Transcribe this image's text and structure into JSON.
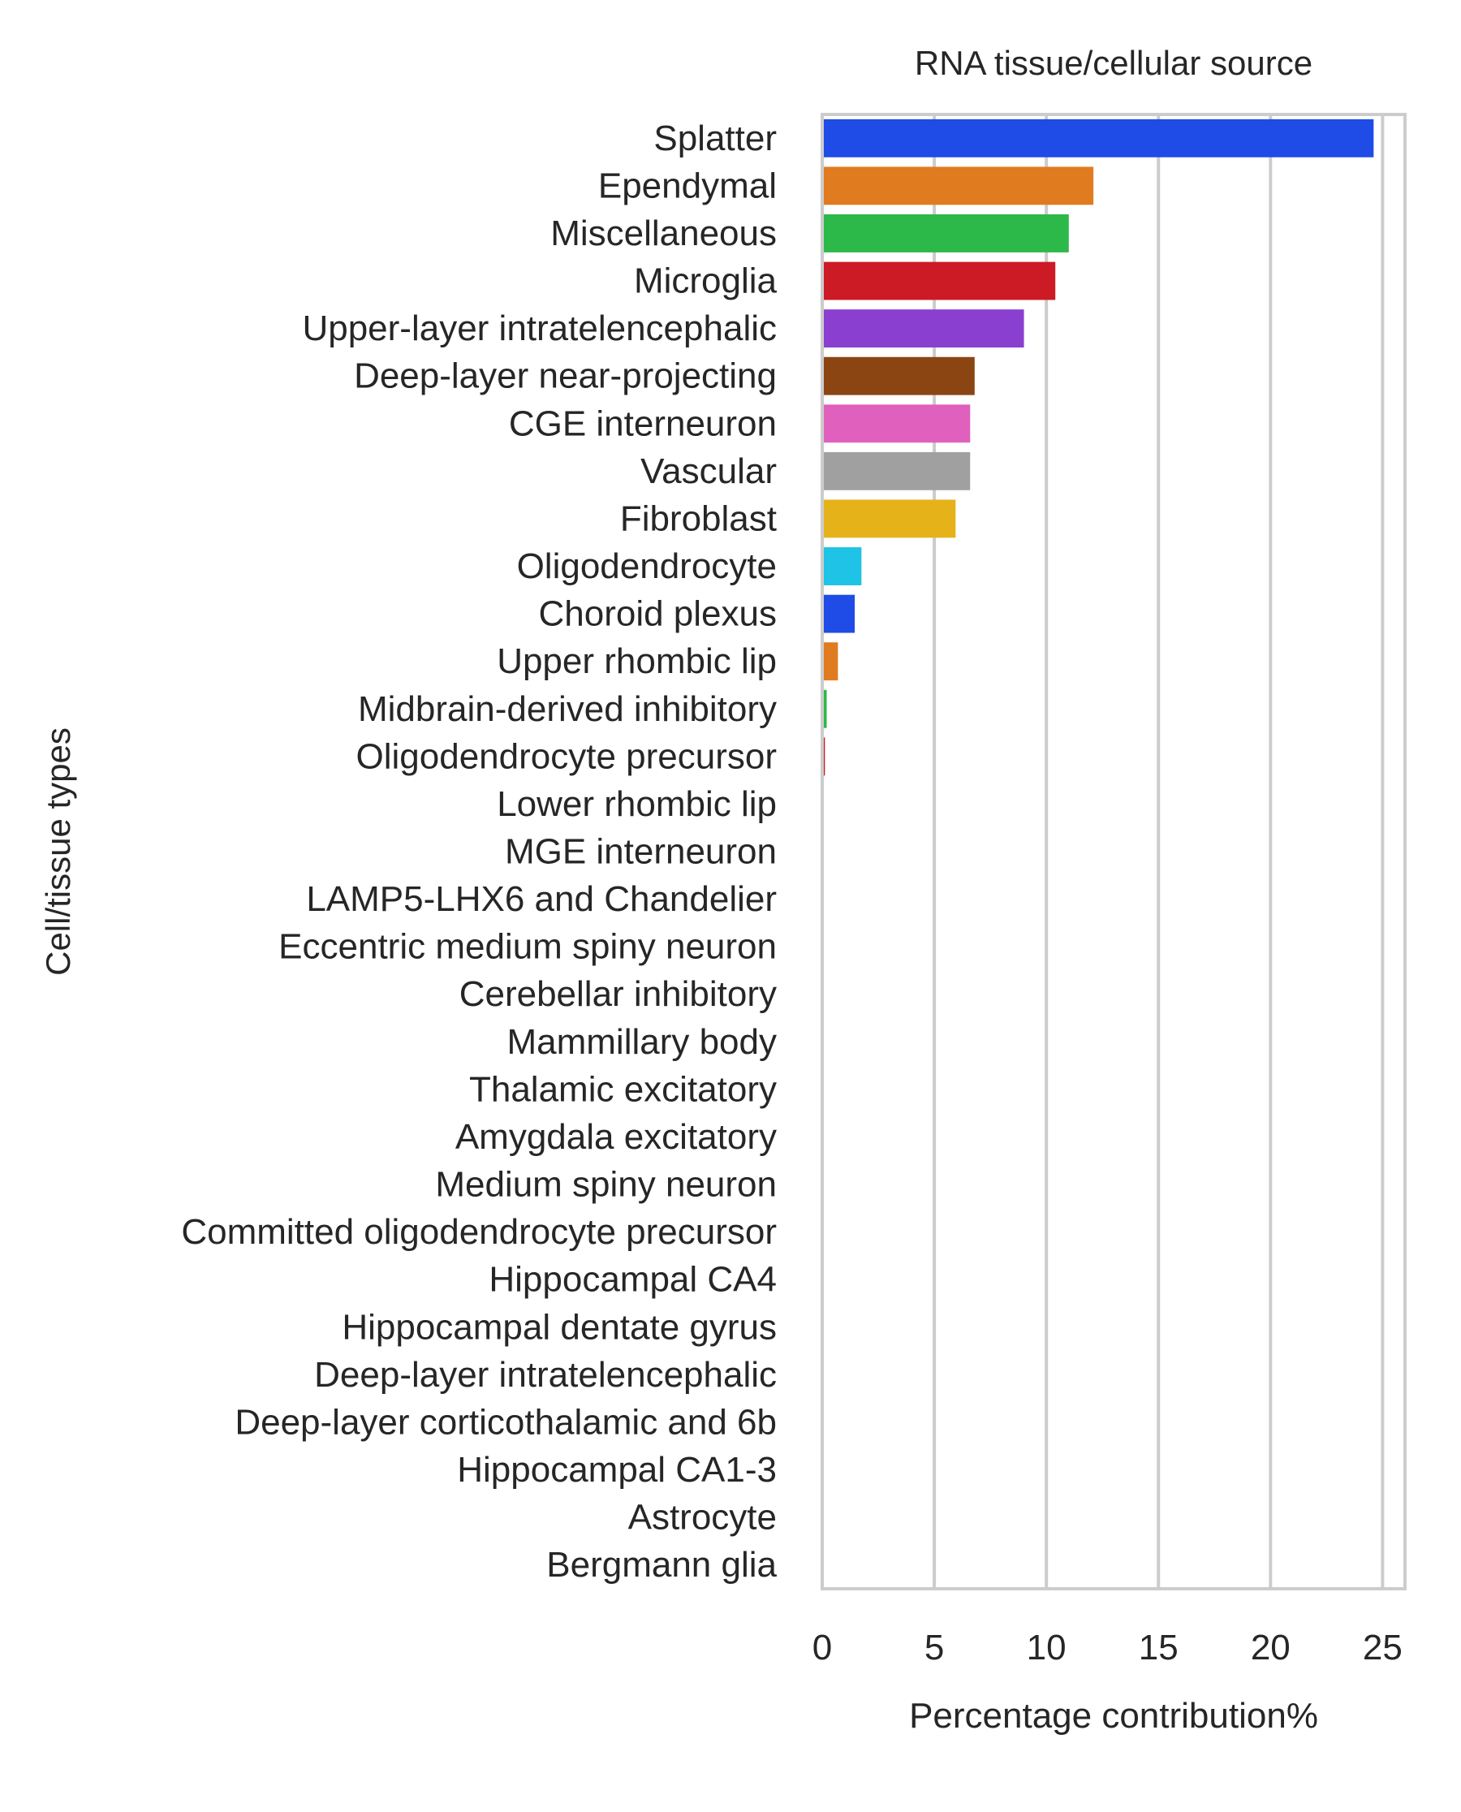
{
  "chart_data": {
    "type": "bar",
    "orientation": "horizontal",
    "title": "RNA tissue/cellular source",
    "xlabel": "Percentage contribution%",
    "ylabel": "Cell/tissue types",
    "xlim": [
      0,
      26
    ],
    "xticks": [
      0,
      5,
      10,
      15,
      20,
      25
    ],
    "grid": true,
    "categories": [
      "Splatter",
      "Ependymal",
      "Miscellaneous",
      "Microglia",
      "Upper-layer intratelencephalic",
      "Deep-layer near-projecting",
      "CGE interneuron",
      "Vascular",
      "Fibroblast",
      "Oligodendrocyte",
      "Choroid plexus",
      "Upper rhombic lip",
      "Midbrain-derived inhibitory",
      "Oligodendrocyte precursor",
      "Lower rhombic lip",
      "MGE interneuron",
      "LAMP5-LHX6 and Chandelier",
      "Eccentric medium spiny neuron",
      "Cerebellar inhibitory",
      "Mammillary body",
      "Thalamic excitatory",
      "Amygdala excitatory",
      "Medium spiny neuron",
      "Committed oligodendrocyte precursor",
      "Hippocampal CA4",
      "Hippocampal dentate gyrus",
      "Deep-layer intratelencephalic",
      "Deep-layer corticothalamic and 6b",
      "Hippocampal CA1-3",
      "Astrocyte",
      "Bergmann glia"
    ],
    "values": [
      24.6,
      12.1,
      11.0,
      10.4,
      9.0,
      6.8,
      6.6,
      6.6,
      5.95,
      1.75,
      1.45,
      0.7,
      0.2,
      0.12,
      0,
      0,
      0,
      0,
      0,
      0,
      0,
      0,
      0,
      0,
      0,
      0,
      0,
      0,
      0,
      0,
      0
    ],
    "colors": [
      "#1f4be6",
      "#e07b20",
      "#2db84a",
      "#cc1b24",
      "#8a3fd0",
      "#8b4512",
      "#e060be",
      "#a0a0a0",
      "#e6b21a",
      "#1ec3e6",
      "#1f4be6",
      "#e07b20",
      "#2db84a",
      "#cc1b24",
      "#8a3fd0",
      "#8b4512",
      "#e060be",
      "#a0a0a0",
      "#e6b21a",
      "#1ec3e6",
      "#1f4be6",
      "#e07b20",
      "#2db84a",
      "#cc1b24",
      "#8a3fd0",
      "#8b4512",
      "#e060be",
      "#a0a0a0",
      "#e6b21a",
      "#1ec3e6",
      "#1f4be6"
    ]
  }
}
